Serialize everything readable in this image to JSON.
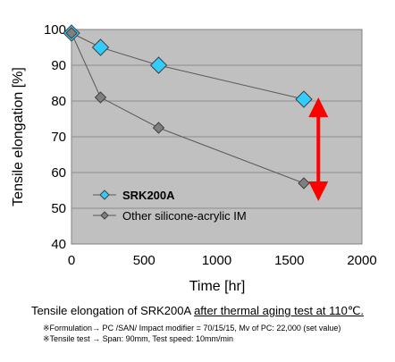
{
  "chart_data": {
    "type": "line",
    "xlabel": "Time [hr]",
    "ylabel": "Tensile elongation [%]",
    "xlim": [
      0,
      2000
    ],
    "ylim": [
      40,
      100
    ],
    "xticks": [
      0,
      500,
      1000,
      1500,
      2000
    ],
    "yticks": [
      40,
      50,
      60,
      70,
      80,
      90,
      100
    ],
    "grid": "horizontal",
    "legend_position": "bottom-left",
    "plot_background": "#c0c0c0",
    "series": [
      {
        "name": "SRK200A",
        "x": [
          0,
          200,
          600,
          1600
        ],
        "values": [
          99,
          95,
          90,
          80.5
        ],
        "marker": "diamond",
        "color": "#33ccff",
        "line_color": "#595959",
        "bold_label": true
      },
      {
        "name": "Other silicone-acrylic IM",
        "x": [
          0,
          200,
          600,
          1600
        ],
        "values": [
          99,
          81,
          72.5,
          57
        ],
        "marker": "diamond",
        "color": "#7f7f7f",
        "line_color": "#595959",
        "bold_label": false
      }
    ],
    "annotations": [
      {
        "type": "double-arrow",
        "x": 1700,
        "y_from": 79,
        "y_to": 54,
        "color": "#ff0000"
      }
    ]
  },
  "caption": {
    "prefix": "Tensile elongation of SRK200A ",
    "underlined": "after thermal aging test at 110℃."
  },
  "notes": [
    "※Formulation→ PC /SAN/ Impact modifier = 70/15/15, Mv of PC: 22,000 (set value)",
    "※Tensile test → Span: 90mm, Test speed: 10mm/min"
  ]
}
